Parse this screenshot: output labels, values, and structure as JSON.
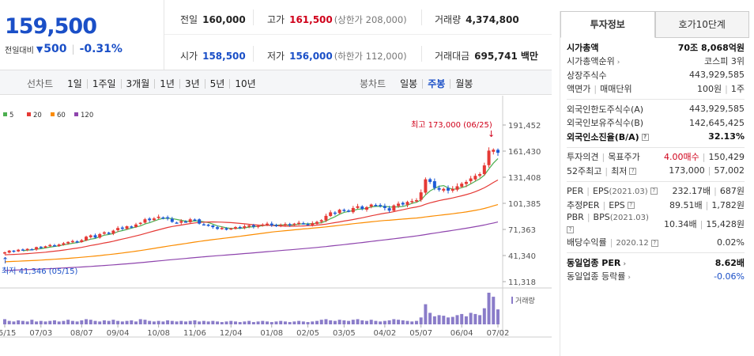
{
  "price": {
    "current": "159,500",
    "change_label": "전일대비",
    "change_value": "500",
    "change_rate": "-0.31%"
  },
  "quote": {
    "prev_label": "전일",
    "prev_value": "160,000",
    "high_label": "고가",
    "high_value": "161,500",
    "high_sub": "(상한가 208,000)",
    "volume_label": "거래량",
    "volume_value": "4,374,800",
    "open_label": "시가",
    "open_value": "158,500",
    "low_label": "저가",
    "low_value": "156,000",
    "low_sub": "(하한가 112,000)",
    "amount_label": "거래대금",
    "amount_value": "695,741",
    "amount_unit": "백만"
  },
  "toolbar": {
    "line_label": "선차트",
    "line_items": [
      "1일",
      "1주일",
      "3개월",
      "1년",
      "3년",
      "5년",
      "10년"
    ],
    "candle_label": "봉차트",
    "candle_items": [
      "일봉",
      "주봉",
      "월봉"
    ],
    "candle_active": "주봉"
  },
  "chart_data": {
    "type": "candlestick",
    "ma_legend": [
      {
        "label": "5",
        "color": "#4caf50"
      },
      {
        "label": "20",
        "color": "#e53935"
      },
      {
        "label": "60",
        "color": "#fb8c00"
      },
      {
        "label": "120",
        "color": "#8e44ad"
      }
    ],
    "y_ticks": [
      11318,
      41340,
      71363,
      101385,
      131408,
      161430,
      191452
    ],
    "y_tick_labels": [
      "11,318",
      "41,340",
      "71,363",
      "101,385",
      "131,408",
      "161,430",
      "191,452"
    ],
    "x_labels": [
      "05/15",
      "07/03",
      "08/07",
      "09/04",
      "10/08",
      "11/06",
      "12/04",
      "01/08",
      "02/05",
      "03/05",
      "04/02",
      "05/07",
      "06/04",
      "07/02"
    ],
    "max_annotation": "최고 173,000 (06/25)",
    "min_annotation": "최저 41,346 (05/15)",
    "volume_label": "거래량",
    "weekly_close": [
      45000,
      47000,
      46000,
      48000,
      47500,
      49000,
      48500,
      51000,
      50000,
      52000,
      53500,
      52500,
      54000,
      55500,
      57000,
      58000,
      56500,
      59000,
      63000,
      64500,
      62000,
      66000,
      68000,
      67000,
      70000,
      73000,
      72000,
      75000,
      74000,
      77000,
      79000,
      83000,
      82000,
      84000,
      86000,
      85000,
      84000,
      80000,
      79000,
      81000,
      80000,
      83000,
      82500,
      78000,
      77000,
      76000,
      74000,
      72000,
      73000,
      71000,
      72500,
      74000,
      73000,
      75000,
      76000,
      74500,
      75500,
      77000,
      78000,
      76000,
      75000,
      76500,
      77500,
      76500,
      78000,
      79000,
      78000,
      77000,
      78500,
      80000,
      82000,
      87000,
      91000,
      90000,
      94000,
      93000,
      92000,
      96000,
      98000,
      95000,
      97000,
      100000,
      99000,
      98000,
      96000,
      93000,
      99000,
      101000,
      100000,
      103000,
      104000,
      105000,
      114000,
      129000,
      126000,
      119000,
      117000,
      118000,
      116000,
      118000,
      121000,
      124000,
      126000,
      130000,
      133000,
      135000,
      145000,
      162000,
      163000,
      159500
    ],
    "volume": [
      9,
      6,
      5,
      7,
      6,
      5,
      8,
      5,
      6,
      5,
      6,
      7,
      5,
      6,
      8,
      6,
      5,
      7,
      9,
      8,
      6,
      5,
      7,
      6,
      8,
      6,
      5,
      6,
      7,
      5,
      9,
      8,
      6,
      5,
      6,
      5,
      7,
      6,
      5,
      6,
      5,
      6,
      7,
      5,
      6,
      5,
      6,
      5,
      4,
      5,
      6,
      5,
      4,
      5,
      6,
      4,
      5,
      6,
      5,
      4,
      5,
      6,
      5,
      4,
      5,
      6,
      5,
      4,
      5,
      6,
      8,
      9,
      7,
      6,
      8,
      7,
      6,
      8,
      9,
      7,
      6,
      8,
      6,
      5,
      6,
      7,
      9,
      8,
      7,
      6,
      5,
      6,
      12,
      35,
      20,
      14,
      16,
      15,
      12,
      13,
      16,
      18,
      14,
      20,
      18,
      16,
      28,
      55,
      48,
      26
    ]
  },
  "side": {
    "tab_invest": "투자정보",
    "tab_quote": "호가10단계",
    "market_cap_label": "시가총액",
    "market_cap_value": "70조 8,068억원",
    "market_rank_label": "시가총액순위",
    "market_rank_value": "코스피 3위",
    "shares_label": "상장주식수",
    "shares_value": "443,929,585",
    "par_label": "액면가",
    "unit_label": "매매단위",
    "par_value": "100원",
    "unit_value": "1주",
    "foreign_limit_label": "외국인한도주식수(A)",
    "foreign_limit_value": "443,929,585",
    "foreign_hold_label": "외국인보유주식수(B)",
    "foreign_hold_value": "142,645,425",
    "foreign_rate_label": "외국인소진율(B/A)",
    "foreign_rate_value": "32.13%",
    "opinion_label": "투자의견",
    "target_label": "목표주가",
    "opinion_value": "4.00매수",
    "target_value": "150,429",
    "week52_label": "52주최고",
    "week52_low_label": "최저",
    "week52_high_value": "173,000",
    "week52_low_value": "57,002",
    "per_label": "PER",
    "eps_label": "EPS",
    "eps_year": "(2021.03)",
    "per_value": "232.17배",
    "eps_value": "687원",
    "est_per_label": "추정PER",
    "est_eps_label": "EPS",
    "est_per_value": "89.51배",
    "est_eps_value": "1,782원",
    "pbr_label": "PBR",
    "bps_label": "BPS",
    "bps_year": "(2021.03)",
    "pbr_value": "10.34배",
    "bps_value": "15,428원",
    "dividend_label": "배당수익률",
    "dividend_date": "2020.12",
    "dividend_value": "0.02%",
    "sector_per_label": "동일업종 PER",
    "sector_per_value": "8.62배",
    "sector_rate_label": "동일업종 등락률",
    "sector_rate_value": "-0.06%"
  }
}
